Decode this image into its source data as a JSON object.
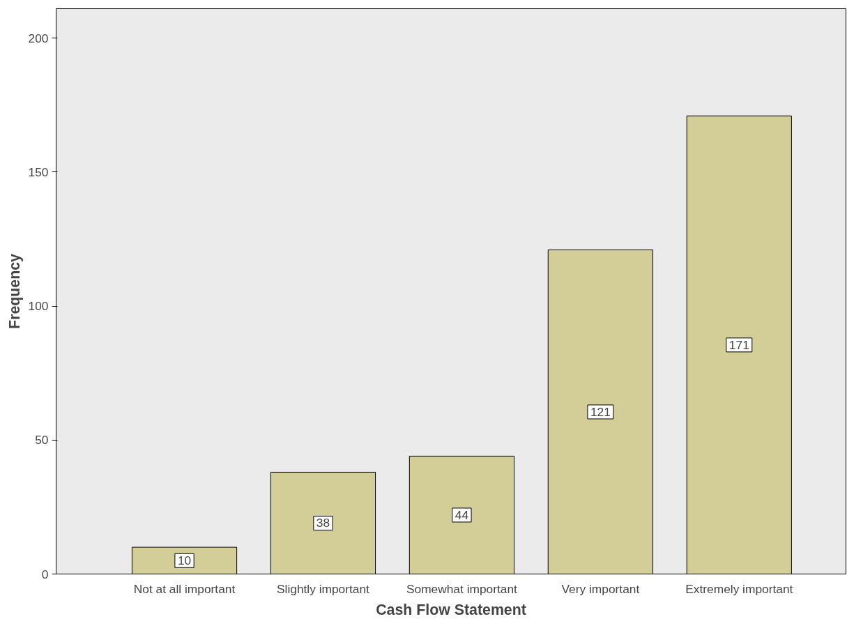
{
  "chart_data": {
    "type": "bar",
    "xlabel": "Cash Flow Statement",
    "ylabel": "Frequency",
    "categories": [
      "Not at all important",
      "Slightly important",
      "Somewhat important",
      "Very important",
      "Extremely important"
    ],
    "values": [
      10,
      38,
      44,
      121,
      171
    ],
    "color": "#d3ce97",
    "ylim": [
      0,
      211
    ],
    "yticks": [
      0,
      50,
      100,
      150,
      200
    ],
    "grid": false,
    "data_labels": true
  }
}
